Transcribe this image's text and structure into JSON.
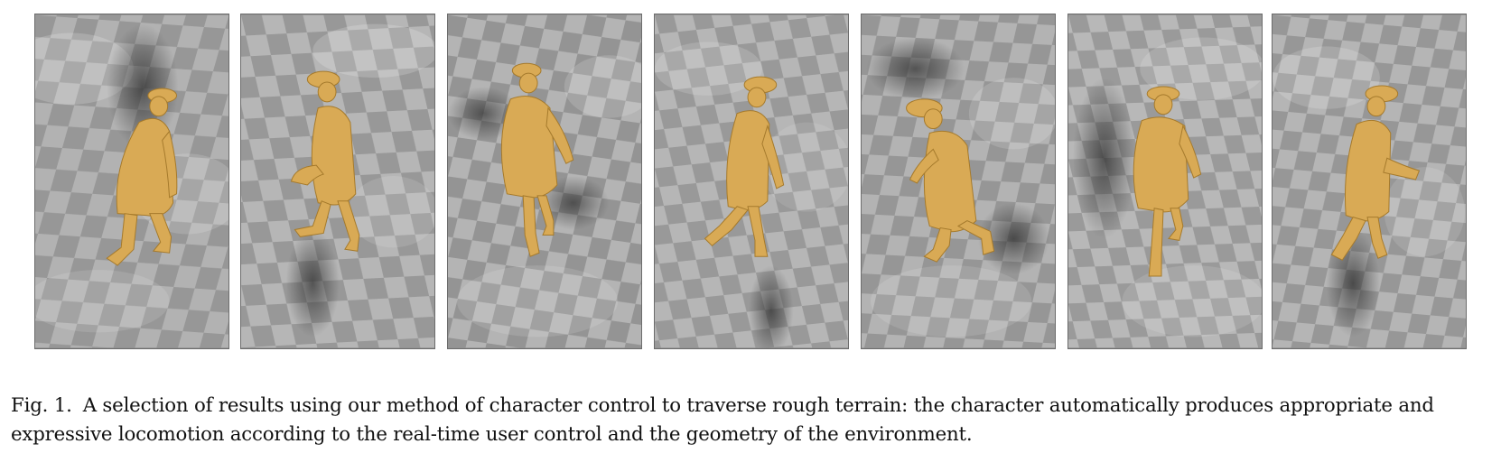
{
  "figure": {
    "label": "Fig. 1.",
    "caption": "A selection of results using our method of character control to traverse rough terrain: the character automatically produces appropriate and expressive locomotion according to the real-time user control and the geometry of the environment.",
    "panel_count": 7,
    "panel_content": "render of pirate character on checkered rough terrain",
    "colors": {
      "character": "#d9aa55",
      "terrain_light": "#b8b8b8",
      "terrain_dark": "#8a8a8a",
      "shadow": "#4a4a4a"
    }
  }
}
